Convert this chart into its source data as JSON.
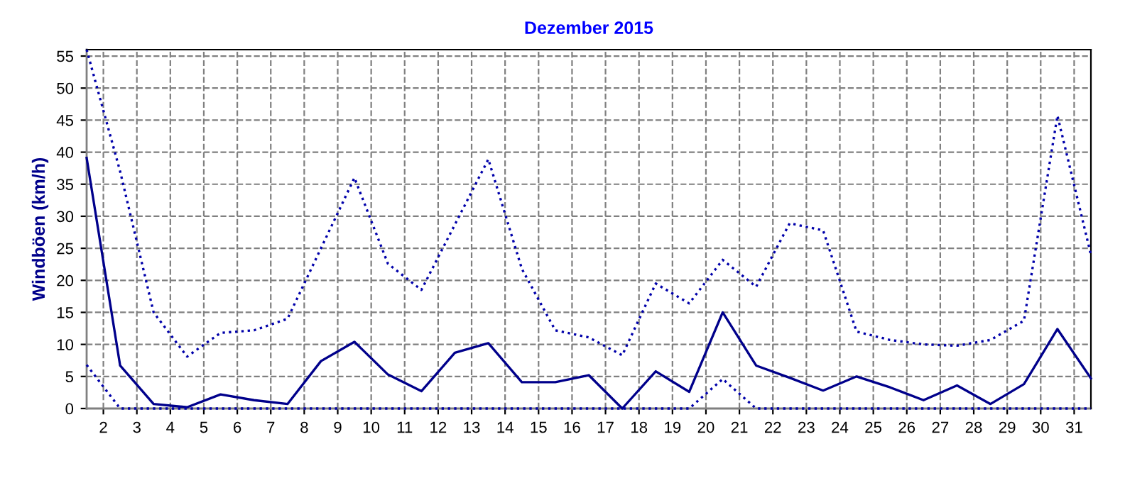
{
  "chart_data": {
    "type": "line",
    "title": "Dezember 2015",
    "ylabel": "Windböen (km/h)",
    "x": [
      1.5,
      2.5,
      3.5,
      4.5,
      5.5,
      6.5,
      7.5,
      8.5,
      9.5,
      10.5,
      11.5,
      12.5,
      13.5,
      14.5,
      15.5,
      16.5,
      17.5,
      18.5,
      19.5,
      20.5,
      21.5,
      22.5,
      23.5,
      24.5,
      25.5,
      26.5,
      27.5,
      28.5,
      29.5,
      30.5,
      31.5
    ],
    "series": [
      {
        "color": "#0000aa",
        "line_style": "dotted",
        "values": [
          56,
          37,
          15,
          8.1,
          11.8,
          12.2,
          14,
          25,
          36,
          22.6,
          18.5,
          28.7,
          38.9,
          21.8,
          12.2,
          11.1,
          8.3,
          19.5,
          16.4,
          23.2,
          19,
          28.9,
          27.8,
          12,
          10.7,
          10,
          9.8,
          10.7,
          13.7,
          45.7,
          24
        ]
      },
      {
        "color": "#00008b",
        "line_style": "solid",
        "values": [
          39.1,
          6.7,
          0.7,
          0.2,
          2.2,
          1.3,
          0.7,
          7.4,
          10.4,
          5.3,
          2.7,
          8.7,
          10.2,
          4.1,
          4.1,
          5.2,
          0,
          5.8,
          2.6,
          15,
          6.7,
          4.8,
          2.8,
          5,
          3.3,
          1.3,
          3.6,
          0.7,
          3.8,
          12.4,
          4.7
        ]
      },
      {
        "color": "#0000aa",
        "line_style": "dotted",
        "values": [
          6.8,
          0,
          0,
          0,
          0,
          0,
          0,
          0,
          0,
          0,
          0,
          0,
          0,
          0,
          0,
          0,
          0,
          0,
          0,
          4.6,
          0,
          0,
          0,
          0,
          0,
          0,
          0,
          0,
          0,
          0,
          0
        ]
      }
    ],
    "xlim": [
      1.5,
      31.5
    ],
    "xticks": [
      2,
      3,
      4,
      5,
      6,
      7,
      8,
      9,
      10,
      11,
      12,
      13,
      14,
      15,
      16,
      17,
      18,
      19,
      20,
      21,
      22,
      23,
      24,
      25,
      26,
      27,
      28,
      29,
      30,
      31
    ],
    "ylim": [
      0,
      56
    ],
    "yticks": [
      0,
      5,
      10,
      15,
      20,
      25,
      30,
      35,
      40,
      45,
      50,
      55
    ],
    "grid": true
  }
}
